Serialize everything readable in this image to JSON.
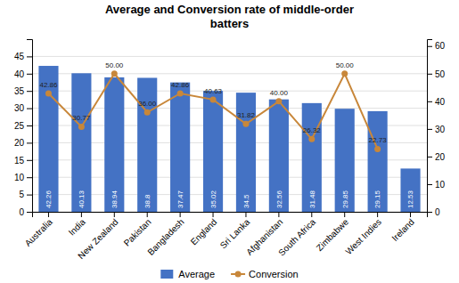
{
  "chart_data": {
    "type": "bar",
    "title": "Average and Conversion rate of middle-order\nbatters",
    "categories": [
      "Australia",
      "India",
      "New Zealand",
      "Pakistan",
      "Bangladesh",
      "England",
      "Sri Lanka",
      "Afghanistan",
      "South Africa",
      "Zimbabwe",
      "West Indies",
      "Ireland"
    ],
    "series": [
      {
        "name": "Average",
        "type": "bar",
        "color": "#4472C4",
        "values": [
          42.26,
          40.13,
          38.94,
          38.8,
          37.47,
          35.02,
          34.5,
          32.56,
          31.48,
          29.85,
          29.15,
          12.53
        ]
      },
      {
        "name": "Conversion",
        "type": "line",
        "axis": "y2",
        "color": "#C8873A",
        "marker": "circle",
        "values": [
          42.86,
          30.77,
          50.0,
          36.0,
          42.86,
          40.63,
          31.82,
          40.0,
          26.32,
          50.0,
          22.73,
          null
        ],
        "value_labels": [
          "42.86",
          "30.77",
          "50.00",
          "36.00",
          "42.86",
          "40.63",
          "31.82",
          "40.00",
          "26.32",
          "50.00",
          "22.73",
          null
        ]
      }
    ],
    "ylim": [
      0,
      50
    ],
    "yticks": [
      0,
      5,
      10,
      15,
      20,
      25,
      30,
      35,
      40,
      45
    ],
    "y2lim": [
      0,
      62.5
    ],
    "y2ticks": [
      0,
      10,
      20,
      30,
      40,
      50,
      60
    ],
    "grid": true,
    "legend": "bottom",
    "data_labels": true
  }
}
